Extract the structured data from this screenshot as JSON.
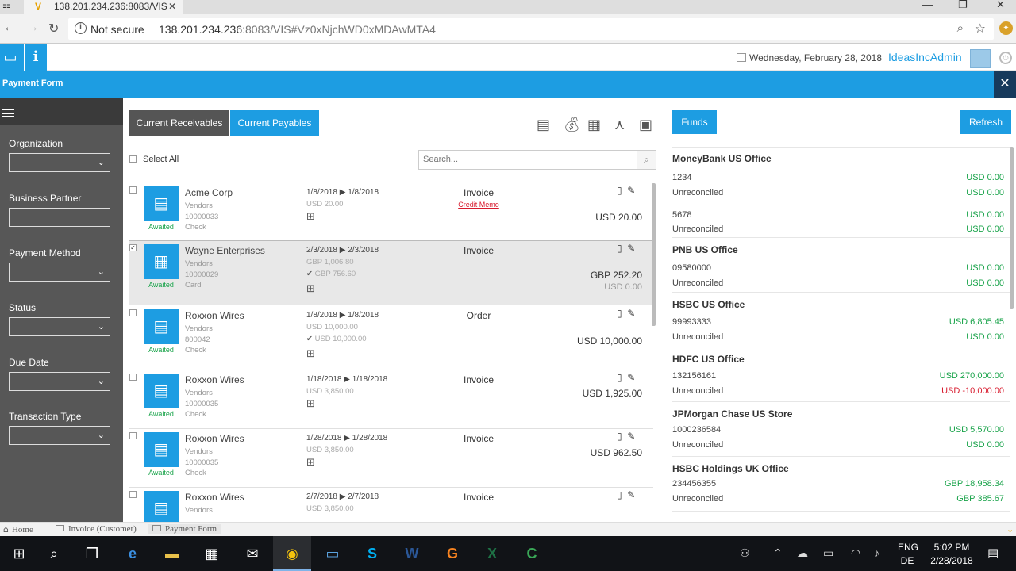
{
  "browser": {
    "tab_title": "138.201.234.236:8083/VIS",
    "security": "Not secure",
    "url_host": "138.201.234.236",
    "url_rest": ":8083/VIS#Vz0xNjchWD0xMDAwMTA4"
  },
  "header": {
    "date": "Wednesday, February 28, 2018",
    "user": "IdeasIncAdmin"
  },
  "titlebar": {
    "title": "Payment Form",
    "close": "✕"
  },
  "filters": {
    "items": [
      {
        "label": "Organization",
        "type": "select",
        "value": ""
      },
      {
        "label": "Business Partner",
        "type": "text",
        "value": ""
      },
      {
        "label": "Payment Method",
        "type": "select",
        "value": ""
      },
      {
        "label": "Status",
        "type": "select",
        "value": ""
      },
      {
        "label": "Due Date",
        "type": "select",
        "value": ""
      },
      {
        "label": "Transaction Type",
        "type": "select",
        "value": ""
      }
    ]
  },
  "main": {
    "tabs": [
      {
        "label": "Current Receivables",
        "active": false
      },
      {
        "label": "Current Payables",
        "active": true
      }
    ],
    "select_all": "Select All",
    "search_placeholder": "Search...",
    "rows": [
      {
        "checked": false,
        "status": "Awaited",
        "name": "Acme Corp",
        "group": "Vendors",
        "code": "10000033",
        "method": "Check",
        "date_from": "1/8/2018",
        "date_to": "1/8/2018",
        "amount": "USD 20.00",
        "paid": "",
        "type": "Invoice",
        "memo": "Credit Memo",
        "total": "USD 20.00",
        "total2": ""
      },
      {
        "checked": true,
        "status": "Awaited",
        "name": "Wayne Enterprises",
        "group": "Vendors",
        "code": "10000029",
        "method": "Card",
        "date_from": "2/3/2018",
        "date_to": "2/3/2018",
        "amount": "GBP 1,006.80",
        "paid": "GBP 756.60",
        "type": "Invoice",
        "memo": "",
        "total": "GBP 252.20",
        "total2": "USD 0.00"
      },
      {
        "checked": false,
        "status": "Awaited",
        "name": "Roxxon Wires",
        "group": "Vendors",
        "code": "800042",
        "method": "Check",
        "date_from": "1/8/2018",
        "date_to": "1/8/2018",
        "amount": "USD 10,000.00",
        "paid": "USD 10,000.00",
        "type": "Order",
        "memo": "",
        "total": "USD 10,000.00",
        "total2": ""
      },
      {
        "checked": false,
        "status": "Awaited",
        "name": "Roxxon Wires",
        "group": "Vendors",
        "code": "10000035",
        "method": "Check",
        "date_from": "1/18/2018",
        "date_to": "1/18/2018",
        "amount": "USD 3,850.00",
        "paid": "",
        "type": "Invoice",
        "memo": "",
        "total": "USD 1,925.00",
        "total2": ""
      },
      {
        "checked": false,
        "status": "Awaited",
        "name": "Roxxon Wires",
        "group": "Vendors",
        "code": "10000035",
        "method": "Check",
        "date_from": "1/28/2018",
        "date_to": "1/28/2018",
        "amount": "USD 3,850.00",
        "paid": "",
        "type": "Invoice",
        "memo": "",
        "total": "USD 962.50",
        "total2": ""
      },
      {
        "checked": false,
        "status": "Awaited",
        "name": "Roxxon Wires",
        "group": "Vendors",
        "code": "",
        "method": "",
        "date_from": "2/7/2018",
        "date_to": "2/7/2018",
        "amount": "USD 3,850.00",
        "paid": "",
        "type": "Invoice",
        "memo": "",
        "total": "",
        "total2": ""
      }
    ]
  },
  "funds": {
    "funds_label": "Funds",
    "refresh_label": "Refresh",
    "banks": [
      {
        "name": "MoneyBank US Office",
        "lines": [
          {
            "label": "1234",
            "value": "USD 0.00",
            "neg": false
          },
          {
            "label": "Unreconciled",
            "value": "USD 0.00",
            "neg": false
          },
          {
            "label": "5678",
            "value": "USD 0.00",
            "neg": false
          },
          {
            "label": "Unreconciled",
            "value": "USD 0.00",
            "neg": false
          }
        ]
      },
      {
        "name": "PNB US Office",
        "lines": [
          {
            "label": "09580000",
            "value": "USD 0.00",
            "neg": false
          },
          {
            "label": "Unreconciled",
            "value": "USD 0.00",
            "neg": false
          }
        ]
      },
      {
        "name": "HSBC US Office",
        "lines": [
          {
            "label": "99993333",
            "value": "USD 6,805.45",
            "neg": false
          },
          {
            "label": "Unreconciled",
            "value": "USD 0.00",
            "neg": false
          }
        ]
      },
      {
        "name": "HDFC US Office",
        "lines": [
          {
            "label": "132156161",
            "value": "USD 270,000.00",
            "neg": false
          },
          {
            "label": "Unreconciled",
            "value": "USD -10,000.00",
            "neg": true
          }
        ]
      },
      {
        "name": "JPMorgan Chase US Store",
        "lines": [
          {
            "label": "1000236584",
            "value": "USD 5,570.00",
            "neg": false
          },
          {
            "label": "Unreconciled",
            "value": "USD 0.00",
            "neg": false
          }
        ]
      },
      {
        "name": "HSBC Holdings UK Office",
        "lines": [
          {
            "label": "234456355",
            "value": "GBP 18,958.34",
            "neg": false
          },
          {
            "label": "Unreconciled",
            "value": "GBP 385.67",
            "neg": false
          }
        ]
      }
    ]
  },
  "breadcrumbs": {
    "home": "Home",
    "invoice": "Invoice (Customer)",
    "payment": "Payment Form"
  },
  "taskbar": {
    "lang1": "ENG",
    "lang2": "DE",
    "time": "5:02 PM",
    "date": "2/28/2018"
  },
  "colors": {
    "accent": "#1d9de2",
    "awaited": "#19a34a",
    "negative": "#d81b2e",
    "sidebar": "#575757"
  }
}
